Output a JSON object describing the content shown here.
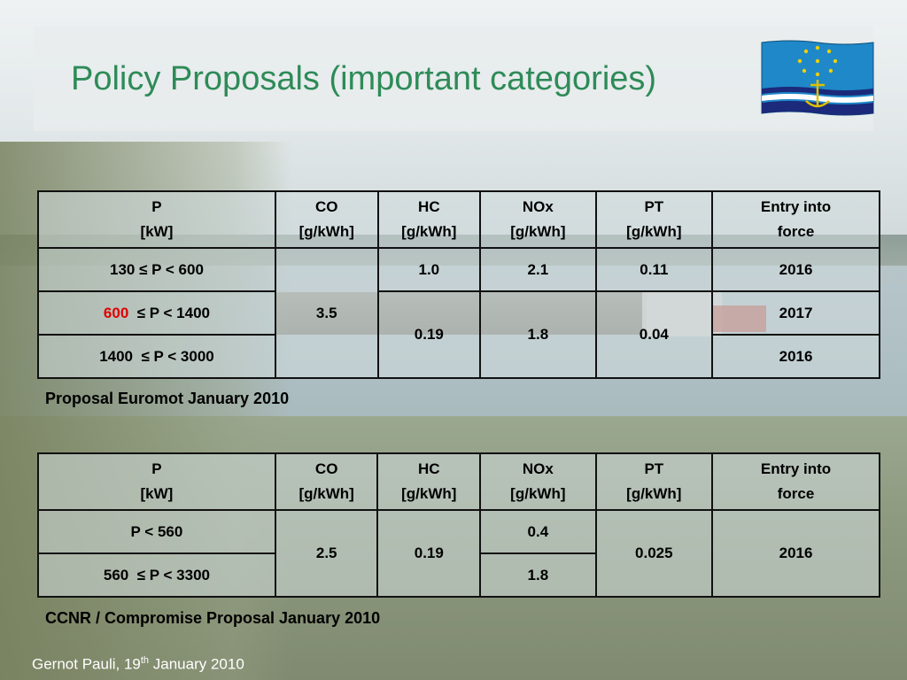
{
  "slide": {
    "title": "Policy Proposals (important categories)",
    "footer_name": "Gernot Pauli, 19",
    "footer_sup": "th",
    "footer_date": " January 2010"
  },
  "colors": {
    "title": "#2e8b57",
    "highlight": "#e00000",
    "flag_blue": "#1f88c8",
    "flag_navy": "#1b2a7a",
    "flag_star": "#f0d000"
  },
  "flag_icon": "ccnr-flag-icon",
  "headers": [
    {
      "l1": "P",
      "l2": "[kW]"
    },
    {
      "l1": "CO",
      "l2": "[g/kWh]"
    },
    {
      "l1": "HC",
      "l2": "[g/kWh]"
    },
    {
      "l1": "NOx",
      "l2": "[g/kWh]"
    },
    {
      "l1": "PT",
      "l2": "[g/kWh]"
    },
    {
      "l1": "Entry into",
      "l2": "force"
    }
  ],
  "table1": {
    "caption": "Proposal Euromot January 2010",
    "rows": [
      {
        "p": "130 ≤ P < 600",
        "entry": "2016"
      },
      {
        "p_red": "600",
        "p_rest": "  ≤ P < 1400",
        "entry": "2017"
      },
      {
        "p": "1400  ≤ P < 3000",
        "entry": "2016"
      }
    ],
    "co": "3.5",
    "hc_row1": "1.0",
    "hc_merged": "0.19",
    "nox_row1": "2.1",
    "nox_merged": "1.8",
    "pt_row1": "0.11",
    "pt_merged": "0.04"
  },
  "table2": {
    "caption": "CCNR / Compromise Proposal January 2010",
    "rows": [
      {
        "p": "P < 560",
        "nox": "0.4"
      },
      {
        "p": "560  ≤ P < 3300",
        "nox": "1.8"
      }
    ],
    "co": "2.5",
    "hc": "0.19",
    "pt": "0.025",
    "entry": "2016"
  }
}
